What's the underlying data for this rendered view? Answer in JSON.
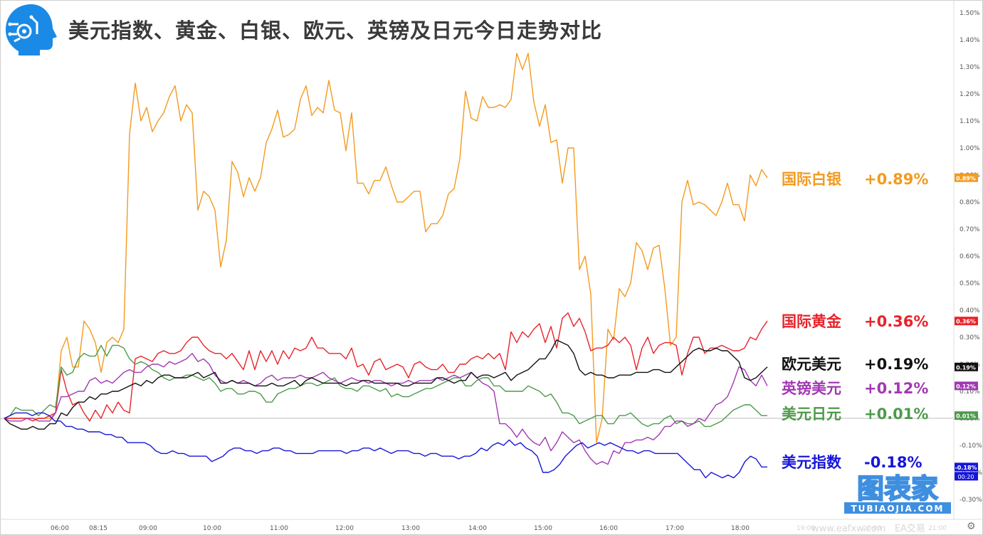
{
  "title": "美元指数、黄金、白银、欧元、英镑及日元今日走势对比",
  "watermark": {
    "name": "图表家",
    "domain": "TUBIAOJIA.COM",
    "site": "www.eafxw.com",
    "site2": "EA交易"
  },
  "chart_data": {
    "type": "line",
    "title": "美元指数、黄金、白银、欧元、英镑及日元今日走势对比",
    "x_ticks": [
      "06:00",
      "08:15",
      "09:00",
      "10:00",
      "11:00",
      "12:00",
      "13:00",
      "14:00",
      "15:00",
      "16:00",
      "17:00",
      "18:00",
      "19:00",
      "20:00",
      "21:00"
    ],
    "y_ticks": [
      "1.50%",
      "1.40%",
      "1.30%",
      "1.20%",
      "1.10%",
      "1.00%",
      "0.90%",
      "0.80%",
      "0.70%",
      "0.60%",
      "0.50%",
      "0.40%",
      "0.30%",
      "0.20%",
      "0.10%",
      "0.00%",
      "-0.10%",
      "-0.20%",
      "-0.30%"
    ],
    "ylim": [
      -0.33,
      1.53
    ],
    "y_unit": "%",
    "time_badge": "00:20",
    "series": [
      {
        "name": "国际白银",
        "value_label": "+0.89%",
        "badge": "0.89%",
        "color": "#f39a1e",
        "values": [
          0.0,
          0.0,
          0.0,
          0.0,
          0.0,
          0.0,
          0.0,
          0.0,
          0.0,
          0.02,
          0.25,
          0.3,
          0.19,
          0.19,
          0.36,
          0.33,
          0.28,
          0.17,
          0.28,
          0.3,
          0.28,
          0.33,
          1.05,
          1.24,
          1.1,
          1.15,
          1.06,
          1.1,
          1.13,
          1.19,
          1.23,
          1.1,
          1.16,
          1.13,
          0.77,
          0.84,
          0.82,
          0.77,
          0.56,
          0.66,
          0.95,
          0.91,
          0.82,
          0.89,
          0.84,
          0.89,
          1.02,
          1.07,
          1.14,
          1.04,
          1.05,
          1.07,
          1.18,
          1.23,
          1.12,
          1.15,
          1.13,
          1.25,
          1.14,
          1.13,
          0.99,
          1.13,
          0.87,
          0.87,
          0.83,
          0.88,
          0.88,
          0.93,
          0.86,
          0.8,
          0.8,
          0.82,
          0.84,
          0.84,
          0.69,
          0.72,
          0.72,
          0.75,
          0.83,
          0.85,
          0.96,
          1.21,
          1.11,
          1.1,
          1.19,
          1.15,
          1.15,
          1.16,
          1.15,
          1.18,
          1.35,
          1.29,
          1.35,
          1.17,
          1.08,
          1.16,
          1.02,
          1.03,
          0.87,
          1.0,
          1.0,
          0.55,
          0.6,
          0.46,
          -0.09,
          0.0,
          0.33,
          0.29,
          0.48,
          0.45,
          0.5,
          0.65,
          0.62,
          0.55,
          0.63,
          0.64,
          0.48,
          0.27,
          0.3,
          0.8,
          0.88,
          0.79,
          0.8,
          0.79,
          0.77,
          0.75,
          0.8,
          0.87,
          0.79,
          0.79,
          0.73,
          0.9,
          0.86,
          0.92,
          0.89
        ]
      },
      {
        "name": "国际黄金",
        "value_label": "+0.36%",
        "badge": "0.36%",
        "color": "#e8232a",
        "values": [
          0.0,
          0.0,
          0.0,
          0.0,
          0.0,
          -0.01,
          0.0,
          0.0,
          0.01,
          0.02,
          0.18,
          0.1,
          0.05,
          0.06,
          0.02,
          -0.01,
          0.03,
          0.0,
          0.05,
          0.02,
          0.06,
          0.03,
          0.02,
          0.22,
          0.23,
          0.22,
          0.21,
          0.24,
          0.25,
          0.24,
          0.24,
          0.25,
          0.28,
          0.3,
          0.3,
          0.27,
          0.25,
          0.24,
          0.24,
          0.22,
          0.24,
          0.21,
          0.18,
          0.25,
          0.18,
          0.25,
          0.21,
          0.25,
          0.2,
          0.25,
          0.22,
          0.26,
          0.25,
          0.26,
          0.3,
          0.26,
          0.26,
          0.24,
          0.24,
          0.24,
          0.22,
          0.26,
          0.19,
          0.2,
          0.16,
          0.21,
          0.22,
          0.18,
          0.19,
          0.2,
          0.19,
          0.15,
          0.2,
          0.21,
          0.19,
          0.18,
          0.18,
          0.2,
          0.17,
          0.17,
          0.2,
          0.2,
          0.22,
          0.23,
          0.22,
          0.24,
          0.22,
          0.24,
          0.18,
          0.32,
          0.28,
          0.32,
          0.3,
          0.33,
          0.35,
          0.28,
          0.34,
          0.26,
          0.37,
          0.39,
          0.34,
          0.37,
          0.32,
          0.25,
          0.26,
          0.26,
          0.27,
          0.3,
          0.28,
          0.3,
          0.27,
          0.18,
          0.26,
          0.3,
          0.24,
          0.27,
          0.28,
          0.28,
          0.27,
          0.16,
          0.24,
          0.3,
          0.3,
          0.24,
          0.26,
          0.26,
          0.27,
          0.26,
          0.25,
          0.25,
          0.26,
          0.3,
          0.29,
          0.33,
          0.36
        ]
      },
      {
        "name": "欧元美元",
        "value_label": "+0.19%",
        "badge": "0.19%",
        "color": "#111111",
        "values": [
          0.0,
          -0.02,
          -0.03,
          -0.04,
          -0.04,
          -0.03,
          -0.04,
          -0.04,
          -0.02,
          -0.02,
          0.02,
          0.01,
          0.04,
          0.06,
          0.06,
          0.08,
          0.07,
          0.09,
          0.09,
          0.1,
          0.1,
          0.11,
          0.12,
          0.13,
          0.12,
          0.14,
          0.13,
          0.15,
          0.16,
          0.16,
          0.15,
          0.15,
          0.15,
          0.16,
          0.17,
          0.15,
          0.16,
          0.17,
          0.13,
          0.13,
          0.14,
          0.13,
          0.13,
          0.13,
          0.12,
          0.12,
          0.12,
          0.13,
          0.12,
          0.12,
          0.13,
          0.14,
          0.12,
          0.14,
          0.15,
          0.14,
          0.13,
          0.13,
          0.13,
          0.13,
          0.12,
          0.13,
          0.13,
          0.14,
          0.14,
          0.13,
          0.13,
          0.13,
          0.13,
          0.13,
          0.12,
          0.12,
          0.13,
          0.13,
          0.13,
          0.13,
          0.15,
          0.15,
          0.14,
          0.13,
          0.14,
          0.14,
          0.17,
          0.15,
          0.16,
          0.16,
          0.15,
          0.16,
          0.17,
          0.14,
          0.16,
          0.17,
          0.18,
          0.2,
          0.22,
          0.22,
          0.25,
          0.29,
          0.28,
          0.27,
          0.24,
          0.18,
          0.16,
          0.17,
          0.16,
          0.16,
          0.15,
          0.15,
          0.16,
          0.16,
          0.16,
          0.17,
          0.17,
          0.17,
          0.18,
          0.18,
          0.17,
          0.17,
          0.19,
          0.21,
          0.23,
          0.25,
          0.26,
          0.25,
          0.25,
          0.26,
          0.25,
          0.25,
          0.23,
          0.21,
          0.15,
          0.14,
          0.15,
          0.17,
          0.19
        ]
      },
      {
        "name": "英镑美元",
        "value_label": "+0.12%",
        "badge": "0.12%",
        "color": "#a238b3",
        "values": [
          0.0,
          -0.01,
          -0.01,
          -0.01,
          0.0,
          0.0,
          -0.01,
          -0.01,
          -0.01,
          0.02,
          0.08,
          0.08,
          0.09,
          0.1,
          0.1,
          0.14,
          0.15,
          0.13,
          0.14,
          0.13,
          0.15,
          0.17,
          0.18,
          0.17,
          0.17,
          0.19,
          0.2,
          0.2,
          0.19,
          0.21,
          0.2,
          0.21,
          0.22,
          0.24,
          0.21,
          0.22,
          0.2,
          0.16,
          0.14,
          0.13,
          0.14,
          0.13,
          0.14,
          0.13,
          0.12,
          0.13,
          0.15,
          0.16,
          0.14,
          0.15,
          0.15,
          0.15,
          0.16,
          0.15,
          0.15,
          0.16,
          0.17,
          0.15,
          0.14,
          0.13,
          0.14,
          0.15,
          0.14,
          0.14,
          0.13,
          0.14,
          0.14,
          0.13,
          0.12,
          0.13,
          0.13,
          0.14,
          0.13,
          0.14,
          0.14,
          0.14,
          0.15,
          0.14,
          0.15,
          0.16,
          0.15,
          0.16,
          0.17,
          0.15,
          0.13,
          0.12,
          0.1,
          -0.02,
          -0.02,
          -0.04,
          -0.07,
          -0.04,
          -0.07,
          -0.09,
          -0.1,
          -0.07,
          -0.12,
          -0.09,
          -0.05,
          -0.07,
          -0.09,
          -0.08,
          -0.12,
          -0.15,
          -0.17,
          -0.16,
          -0.17,
          -0.12,
          -0.13,
          -0.09,
          -0.09,
          -0.08,
          -0.08,
          -0.07,
          -0.08,
          -0.06,
          -0.03,
          -0.03,
          -0.01,
          -0.01,
          -0.03,
          -0.02,
          0.0,
          -0.01,
          0.02,
          0.05,
          0.06,
          0.08,
          0.13,
          0.19,
          0.18,
          0.14,
          0.12,
          0.16,
          0.12
        ]
      },
      {
        "name": "美元日元",
        "value_label": "+0.01%",
        "badge": "0.01%",
        "color": "#4d9a4a",
        "values": [
          0.0,
          0.01,
          0.04,
          0.03,
          0.03,
          0.03,
          0.01,
          0.03,
          0.05,
          0.04,
          0.19,
          0.16,
          0.17,
          0.22,
          0.24,
          0.23,
          0.23,
          0.27,
          0.23,
          0.27,
          0.27,
          0.26,
          0.22,
          0.2,
          0.21,
          0.2,
          0.18,
          0.17,
          0.15,
          0.14,
          0.15,
          0.15,
          0.16,
          0.16,
          0.15,
          0.14,
          0.15,
          0.13,
          0.1,
          0.11,
          0.11,
          0.09,
          0.09,
          0.1,
          0.1,
          0.09,
          0.06,
          0.06,
          0.09,
          0.1,
          0.11,
          0.11,
          0.12,
          0.13,
          0.13,
          0.12,
          0.13,
          0.14,
          0.15,
          0.12,
          0.11,
          0.11,
          0.1,
          0.12,
          0.12,
          0.11,
          0.1,
          0.11,
          0.08,
          0.09,
          0.08,
          0.08,
          0.09,
          0.1,
          0.11,
          0.11,
          0.12,
          0.13,
          0.14,
          0.15,
          0.15,
          0.12,
          0.12,
          0.14,
          0.15,
          0.15,
          0.12,
          0.12,
          0.1,
          0.1,
          0.1,
          0.1,
          0.12,
          0.11,
          0.1,
          0.08,
          0.09,
          0.06,
          0.02,
          0.02,
          0.01,
          -0.02,
          -0.01,
          0.0,
          0.01,
          0.01,
          -0.02,
          -0.02,
          0.01,
          0.01,
          0.02,
          0.0,
          -0.02,
          -0.03,
          -0.02,
          -0.02,
          0.0,
          0.01,
          -0.02,
          -0.01,
          -0.02,
          -0.02,
          -0.01,
          -0.03,
          -0.03,
          -0.02,
          -0.01,
          0.01,
          0.03,
          0.04,
          0.05,
          0.05,
          0.03,
          0.01,
          0.01
        ]
      },
      {
        "name": "美元指数",
        "value_label": "-0.18%",
        "badge": "-0.18%",
        "color": "#1616d9",
        "values": [
          0.0,
          0.01,
          0.02,
          0.02,
          0.02,
          0.01,
          0.02,
          0.02,
          0.01,
          -0.01,
          -0.01,
          -0.03,
          -0.03,
          -0.04,
          -0.04,
          -0.05,
          -0.05,
          -0.05,
          -0.06,
          -0.06,
          -0.07,
          -0.07,
          -0.09,
          -0.09,
          -0.09,
          -0.09,
          -0.1,
          -0.12,
          -0.13,
          -0.13,
          -0.12,
          -0.13,
          -0.13,
          -0.14,
          -0.14,
          -0.14,
          -0.14,
          -0.16,
          -0.15,
          -0.14,
          -0.12,
          -0.11,
          -0.11,
          -0.12,
          -0.12,
          -0.13,
          -0.12,
          -0.12,
          -0.11,
          -0.11,
          -0.12,
          -0.12,
          -0.13,
          -0.13,
          -0.13,
          -0.13,
          -0.12,
          -0.12,
          -0.12,
          -0.12,
          -0.12,
          -0.13,
          -0.12,
          -0.12,
          -0.11,
          -0.11,
          -0.12,
          -0.11,
          -0.12,
          -0.13,
          -0.12,
          -0.12,
          -0.12,
          -0.13,
          -0.13,
          -0.14,
          -0.13,
          -0.13,
          -0.14,
          -0.14,
          -0.14,
          -0.15,
          -0.14,
          -0.14,
          -0.13,
          -0.11,
          -0.12,
          -0.1,
          -0.09,
          -0.1,
          -0.08,
          -0.1,
          -0.09,
          -0.11,
          -0.12,
          -0.14,
          -0.2,
          -0.2,
          -0.19,
          -0.17,
          -0.14,
          -0.12,
          -0.1,
          -0.09,
          -0.11,
          -0.1,
          -0.09,
          -0.1,
          -0.09,
          -0.1,
          -0.11,
          -0.12,
          -0.12,
          -0.13,
          -0.12,
          -0.12,
          -0.13,
          -0.13,
          -0.13,
          -0.13,
          -0.13,
          -0.15,
          -0.17,
          -0.19,
          -0.19,
          -0.22,
          -0.2,
          -0.21,
          -0.22,
          -0.21,
          -0.22,
          -0.2,
          -0.16,
          -0.14,
          -0.15,
          -0.18,
          -0.18
        ]
      }
    ]
  }
}
